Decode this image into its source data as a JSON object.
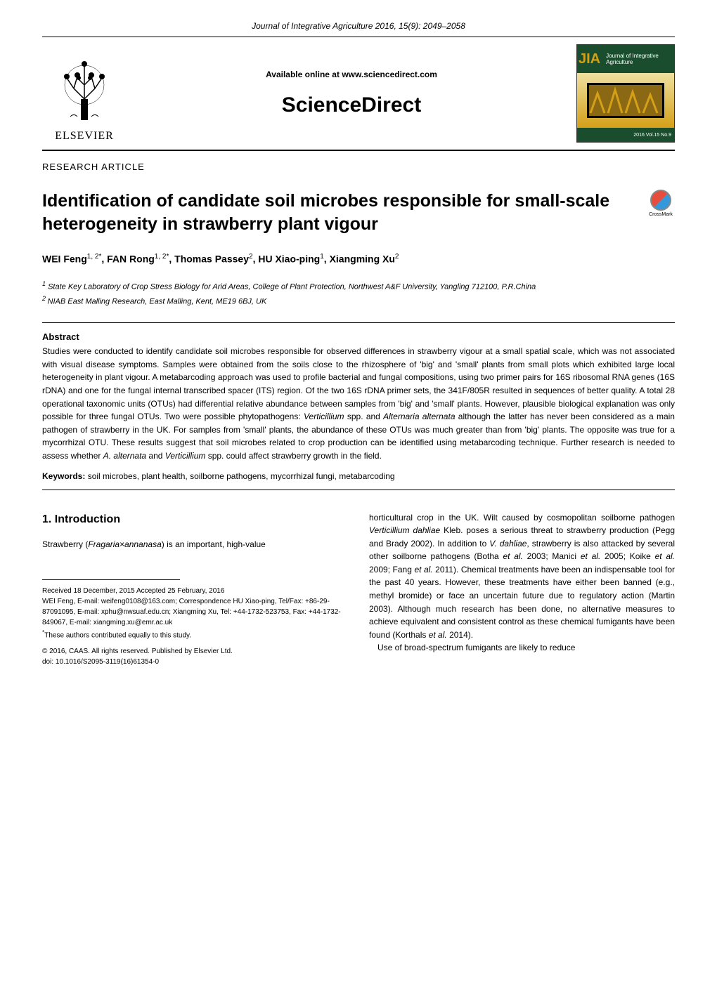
{
  "journal_citation": "Journal of Integrative Agriculture  2016, 15(9): 2049–2058",
  "header": {
    "available_online": "Available online at www.sciencedirect.com",
    "sciencedirect": "ScienceDirect",
    "elsevier_label": "ELSEVIER",
    "jia": {
      "abbrev": "JIA",
      "full": "Journal of Integrative Agriculture",
      "issue_label": "2016   Vol.15   No.9"
    }
  },
  "article_type": "RESEARCH  ARTICLE",
  "title": "Identification of candidate soil microbes responsible for small-scale heterogeneity in strawberry plant vigour",
  "crossmark_label": "CrossMark",
  "authors_html": "WEI Feng<sup>1, 2*</sup>, FAN Rong<sup>1, 2*</sup>, Thomas Passey<sup>2</sup>, HU Xiao-ping<sup>1</sup>, Xiangming Xu<sup>2</sup>",
  "affiliations": {
    "a1": "State Key Laboratory of Crop Stress Biology for Arid Areas, College of Plant Protection, Northwest A&F University, Yangling 712100, P.R.China",
    "a2": "NIAB East Malling Research, East Malling, Kent, ME19 6BJ, UK"
  },
  "abstract": {
    "heading": "Abstract",
    "text_html": "Studies were conducted to identify candidate soil microbes responsible for observed differences in strawberry vigour at a small spatial scale, which was not associated with visual disease symptoms.  Samples were obtained from the soils close to the rhizosphere of 'big' and 'small' plants from small plots which exhibited large local heterogeneity in plant vigour.  A metabarcoding approach was used to profile bacterial and fungal compositions, using two primer pairs for 16S ribosomal RNA genes (16S rDNA) and one for the fungal internal transcribed spacer (ITS) region.  Of the two 16S rDNA primer sets, the 341F/805R resulted in sequences of better quality.  A total 28 operational taxonomic units (OTUs) had differential relative abundance between samples from 'big' and 'small' plants.  However, plausible biological explanation was only possible for three fungal OTUs.  Two were possible phytopathogens: <em>Verticillium</em> spp. and <em>Alternaria alternata</em> although the latter has never been considered as a main pathogen of strawberry in the UK.  For samples from 'small' plants, the abundance of these OTUs was much greater than from 'big' plants.  The opposite was true for a mycorrhizal OTU.  These results suggest that soil microbes related to crop production can be identified using metabarcoding technique.  Further research is needed to assess whether <em>A. alternata</em> and <em>Verticillium</em> spp. could affect strawberry growth in the field.",
    "keywords_label": "Keywords:",
    "keywords": " soil microbes, plant health, soilborne pathogens, mycorrhizal fungi, metabarcoding"
  },
  "section1": {
    "heading": "1. Introduction",
    "left_html": "Strawberry (<em>Fragaria×annanasa</em>) is an important, high-value",
    "right_html": "horticultural crop in the UK.  Wilt caused by cosmopolitan soilborne pathogen <em>Verticillium dahliae</em> Kleb. poses a serious threat to strawberry production (Pegg and Brady 2002).  In addition to <em>V. dahliae</em>, strawberry is also attacked by several other soilborne pathogens (Botha <em>et al.</em> 2003; Manici <em>et al.</em> 2005; Koike <em>et al.</em> 2009; Fang <em>et al.</em> 2011).  Chemical treatments have been an indispensable tool for the past 40 years.  However, these treatments have either been banned (e.g., methyl bromide) or face an uncertain future due to regulatory action (Martin 2003).  Although much research has been done, no alternative measures to achieve equivalent and consistent control as these chemical fumigants have been found (Korthals <em>et al.</em> 2014).",
    "right2_html": "Use of broad-spectrum fumigants are likely to reduce"
  },
  "footnotes": {
    "received": "Received  18 December, 2015    Accepted  25 February, 2016",
    "correspondence": "WEI Feng, E-mail: weifeng0108@163.com; Correspondence HU Xiao-ping, Tel/Fax: +86-29-87091095, E-mail: xphu@nwsuaf.edu.cn; Xiangming Xu, Tel: +44-1732-523753, Fax: +44-1732-849067, E-mail: xiangming.xu@emr.ac.uk",
    "equal": "These authors contributed equally to this study.",
    "copyright": "© 2016, CAAS. All rights reserved. Published by Elsevier Ltd.",
    "doi": "doi: 10.1016/S2095-3119(16)61354-0"
  },
  "colors": {
    "text": "#000000",
    "jia_green": "#1a4d2e",
    "jia_gold": "#d4a017"
  }
}
